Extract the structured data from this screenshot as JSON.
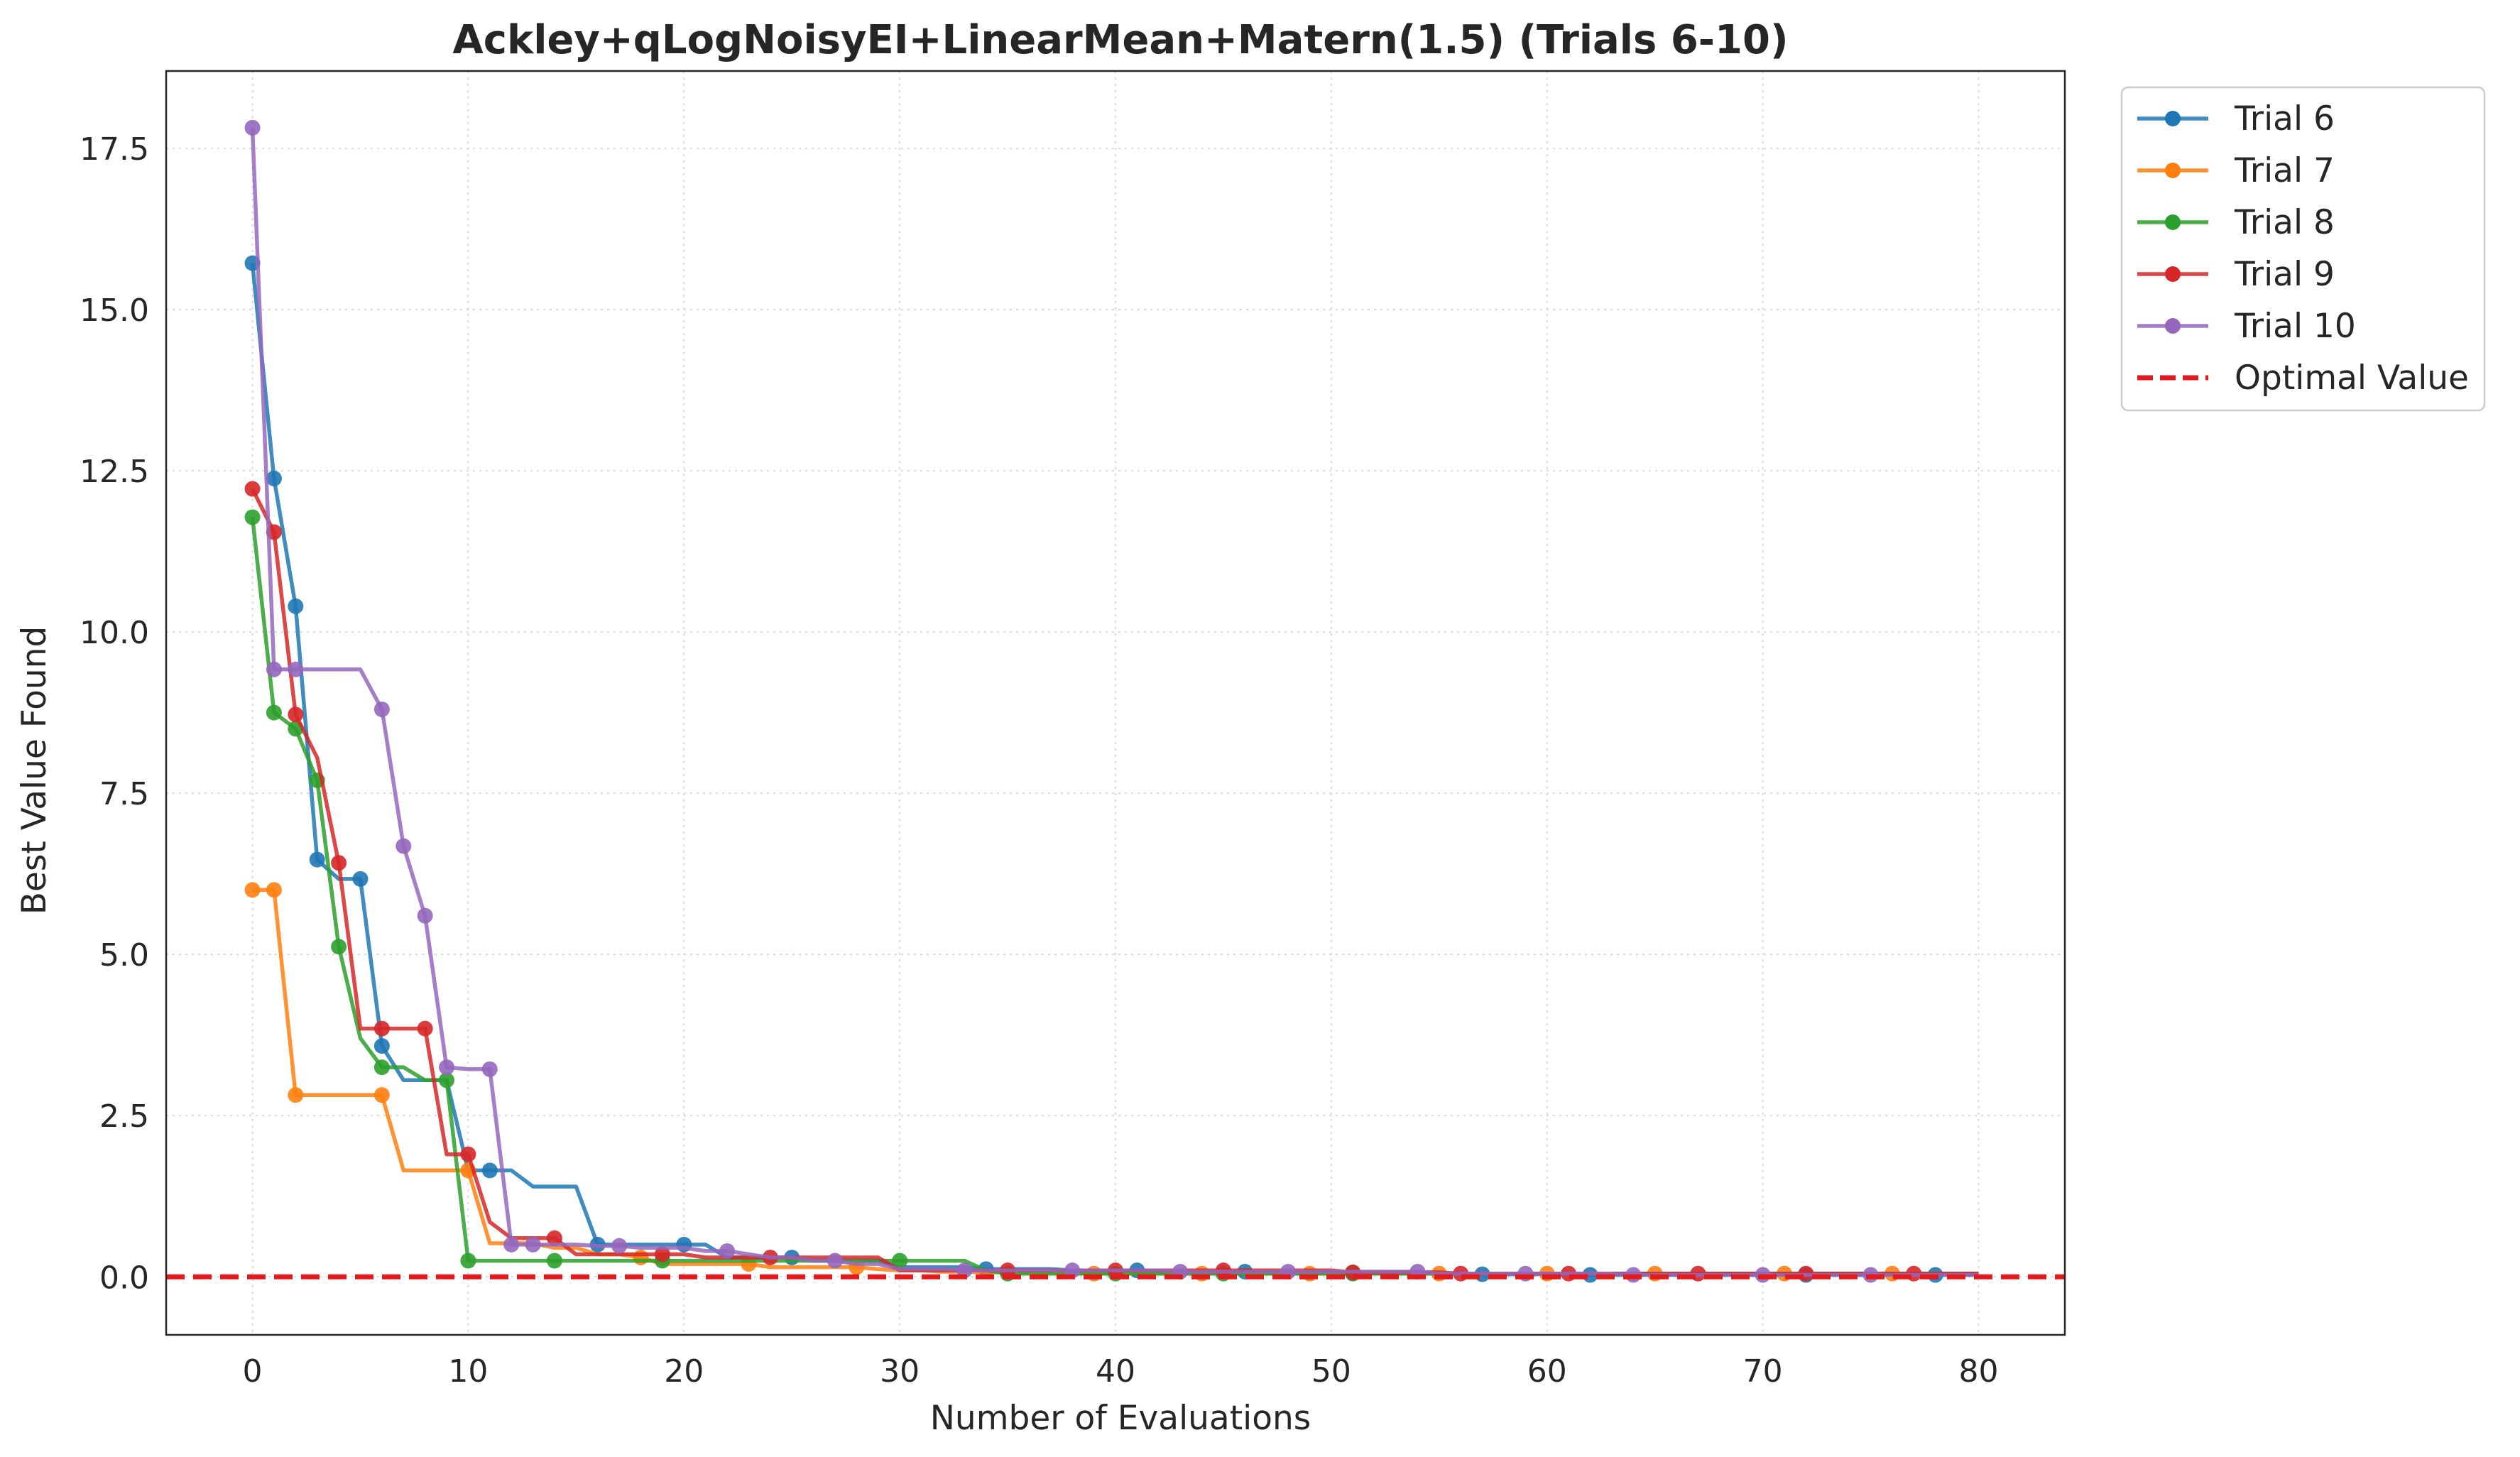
{
  "chart_data": {
    "type": "line",
    "title": "Ackley+qLogNoisyEI+LinearMean+Matern(1.5) (Trials 6-10)",
    "xlabel": "Number of Evaluations",
    "ylabel": "Best Value Found",
    "xlim": [
      -4,
      84
    ],
    "ylim": [
      -0.9,
      18.7
    ],
    "xticks": [
      0,
      10,
      20,
      30,
      40,
      50,
      60,
      70,
      80
    ],
    "xtick_labels": [
      "0",
      "10",
      "20",
      "30",
      "40",
      "50",
      "60",
      "70",
      "80"
    ],
    "yticks": [
      0.0,
      2.5,
      5.0,
      7.5,
      10.0,
      12.5,
      15.0,
      17.5
    ],
    "ytick_labels": [
      "0.0",
      "2.5",
      "5.0",
      "7.5",
      "10.0",
      "12.5",
      "15.0",
      "17.5"
    ],
    "grid": true,
    "legend_position": "outside-top-right",
    "series": [
      {
        "name": "Trial 6",
        "color": "#1f77b4",
        "x": [
          0,
          1,
          2,
          3,
          4,
          5,
          6,
          7,
          8,
          9,
          10,
          11,
          12,
          13,
          14,
          15,
          16,
          17,
          18,
          19,
          20,
          21,
          22,
          23,
          24,
          25,
          26,
          27,
          28,
          29,
          30,
          31,
          32,
          33,
          34,
          35,
          36,
          37,
          38,
          39,
          40,
          41,
          42,
          43,
          44,
          45,
          46,
          47,
          48,
          49,
          50,
          51,
          52,
          53,
          54,
          55,
          56,
          57,
          58,
          59,
          60,
          61,
          62,
          63,
          64,
          65,
          66,
          67,
          68,
          69,
          70,
          71,
          72,
          73,
          74,
          75,
          76,
          77,
          78,
          79,
          80
        ],
        "y": [
          15.72,
          12.38,
          10.4,
          6.47,
          6.17,
          6.17,
          3.58,
          3.05,
          3.05,
          3.05,
          1.65,
          1.65,
          1.65,
          1.4,
          1.4,
          1.4,
          0.5,
          0.5,
          0.5,
          0.5,
          0.5,
          0.5,
          0.3,
          0.3,
          0.3,
          0.3,
          0.25,
          0.25,
          0.25,
          0.25,
          0.15,
          0.15,
          0.15,
          0.15,
          0.12,
          0.12,
          0.12,
          0.12,
          0.1,
          0.1,
          0.1,
          0.1,
          0.08,
          0.08,
          0.08,
          0.08,
          0.08,
          0.07,
          0.07,
          0.07,
          0.07,
          0.06,
          0.06,
          0.06,
          0.06,
          0.05,
          0.05,
          0.04,
          0.04,
          0.04,
          0.04,
          0.04,
          0.03,
          0.03,
          0.03,
          0.03,
          0.03,
          0.03,
          0.03,
          0.03,
          0.03,
          0.03,
          0.03,
          0.03,
          0.03,
          0.03,
          0.03,
          0.03,
          0.03,
          0.03,
          0.03
        ],
        "markers_at": [
          0,
          1,
          2,
          3,
          5,
          6,
          11,
          16,
          20,
          25,
          34,
          41,
          46,
          51,
          57,
          62,
          72,
          78
        ]
      },
      {
        "name": "Trial 7",
        "color": "#ff7f0e",
        "x": [
          0,
          1,
          2,
          3,
          4,
          5,
          6,
          7,
          8,
          9,
          10,
          11,
          12,
          13,
          14,
          15,
          16,
          17,
          18,
          19,
          20,
          21,
          22,
          23,
          24,
          25,
          26,
          27,
          28,
          29,
          30,
          31,
          32,
          33,
          34,
          35,
          36,
          37,
          38,
          39,
          40,
          41,
          42,
          43,
          44,
          45,
          46,
          47,
          48,
          49,
          50,
          51,
          52,
          53,
          54,
          55,
          56,
          57,
          58,
          59,
          60,
          61,
          62,
          63,
          64,
          65,
          66,
          67,
          68,
          69,
          70,
          71,
          72,
          73,
          74,
          75,
          76,
          77,
          78,
          79,
          80
        ],
        "y": [
          6.0,
          6.0,
          2.82,
          2.82,
          2.82,
          2.82,
          2.82,
          1.65,
          1.65,
          1.65,
          1.65,
          0.52,
          0.52,
          0.52,
          0.45,
          0.45,
          0.35,
          0.35,
          0.3,
          0.2,
          0.2,
          0.2,
          0.2,
          0.2,
          0.15,
          0.15,
          0.15,
          0.15,
          0.15,
          0.12,
          0.1,
          0.1,
          0.08,
          0.08,
          0.07,
          0.07,
          0.07,
          0.06,
          0.06,
          0.05,
          0.05,
          0.05,
          0.05,
          0.05,
          0.05,
          0.05,
          0.05,
          0.05,
          0.05,
          0.05,
          0.05,
          0.05,
          0.05,
          0.05,
          0.05,
          0.05,
          0.05,
          0.05,
          0.05,
          0.05,
          0.05,
          0.05,
          0.05,
          0.05,
          0.05,
          0.05,
          0.05,
          0.05,
          0.05,
          0.05,
          0.05,
          0.05,
          0.05,
          0.05,
          0.05,
          0.05,
          0.05,
          0.05,
          0.05,
          0.05,
          0.05
        ],
        "markers_at": [
          0,
          1,
          2,
          6,
          10,
          18,
          23,
          28,
          39,
          44,
          49,
          55,
          60,
          65,
          71,
          76
        ]
      },
      {
        "name": "Trial 8",
        "color": "#2ca02c",
        "x": [
          0,
          1,
          2,
          3,
          4,
          5,
          6,
          7,
          8,
          9,
          10,
          11,
          12,
          13,
          14,
          15,
          16,
          17,
          18,
          19,
          20,
          21,
          22,
          23,
          24,
          25,
          26,
          27,
          28,
          29,
          30,
          31,
          32,
          33,
          34,
          35,
          36,
          37,
          38,
          39,
          40,
          41,
          42,
          43,
          44,
          45,
          46,
          47,
          48,
          49,
          50,
          51,
          52,
          53,
          54,
          55,
          56,
          57,
          58,
          59,
          60,
          61,
          62,
          63,
          64,
          65,
          66,
          67,
          68,
          69,
          70,
          71,
          72,
          73,
          74,
          75,
          76,
          77,
          78,
          79,
          80
        ],
        "y": [
          11.78,
          8.75,
          8.5,
          7.7,
          5.12,
          3.7,
          3.25,
          3.25,
          3.05,
          3.05,
          0.25,
          0.25,
          0.25,
          0.25,
          0.25,
          0.25,
          0.25,
          0.25,
          0.25,
          0.25,
          0.25,
          0.25,
          0.25,
          0.25,
          0.25,
          0.25,
          0.25,
          0.25,
          0.25,
          0.25,
          0.25,
          0.25,
          0.25,
          0.25,
          0.1,
          0.05,
          0.05,
          0.05,
          0.05,
          0.05,
          0.05,
          0.05,
          0.05,
          0.05,
          0.05,
          0.05,
          0.05,
          0.05,
          0.05,
          0.05,
          0.05,
          0.05,
          0.05,
          0.05,
          0.05,
          0.05,
          0.05,
          0.05,
          0.05,
          0.05,
          0.05,
          0.05,
          0.05,
          0.05,
          0.05,
          0.05,
          0.05,
          0.05,
          0.05,
          0.05,
          0.05,
          0.05,
          0.05,
          0.05,
          0.05,
          0.05,
          0.05,
          0.05,
          0.05,
          0.05,
          0.05
        ],
        "markers_at": [
          0,
          1,
          2,
          3,
          4,
          6,
          9,
          10,
          14,
          19,
          30,
          35,
          40,
          45,
          51
        ]
      },
      {
        "name": "Trial 9",
        "color": "#d62728",
        "x": [
          0,
          1,
          2,
          3,
          4,
          5,
          6,
          7,
          8,
          9,
          10,
          11,
          12,
          13,
          14,
          15,
          16,
          17,
          18,
          19,
          20,
          21,
          22,
          23,
          24,
          25,
          26,
          27,
          28,
          29,
          30,
          31,
          32,
          33,
          34,
          35,
          36,
          37,
          38,
          39,
          40,
          41,
          42,
          43,
          44,
          45,
          46,
          47,
          48,
          49,
          50,
          51,
          52,
          53,
          54,
          55,
          56,
          57,
          58,
          59,
          60,
          61,
          62,
          63,
          64,
          65,
          66,
          67,
          68,
          69,
          70,
          71,
          72,
          73,
          74,
          75,
          76,
          77,
          78,
          79,
          80
        ],
        "y": [
          12.22,
          11.55,
          8.72,
          8.05,
          6.42,
          3.85,
          3.85,
          3.85,
          3.85,
          1.9,
          1.9,
          0.85,
          0.6,
          0.6,
          0.6,
          0.35,
          0.35,
          0.35,
          0.35,
          0.35,
          0.35,
          0.3,
          0.3,
          0.3,
          0.3,
          0.3,
          0.3,
          0.3,
          0.3,
          0.3,
          0.1,
          0.1,
          0.1,
          0.1,
          0.1,
          0.1,
          0.1,
          0.1,
          0.1,
          0.1,
          0.1,
          0.1,
          0.1,
          0.1,
          0.1,
          0.1,
          0.1,
          0.1,
          0.1,
          0.1,
          0.1,
          0.07,
          0.07,
          0.07,
          0.07,
          0.07,
          0.05,
          0.05,
          0.05,
          0.05,
          0.05,
          0.05,
          0.05,
          0.05,
          0.05,
          0.05,
          0.05,
          0.05,
          0.05,
          0.05,
          0.05,
          0.05,
          0.05,
          0.05,
          0.05,
          0.05,
          0.05,
          0.05,
          0.05,
          0.05,
          0.05
        ],
        "markers_at": [
          0,
          1,
          2,
          4,
          6,
          8,
          10,
          14,
          19,
          24,
          35,
          40,
          45,
          51,
          56,
          61,
          67,
          72,
          77
        ]
      },
      {
        "name": "Trial 10",
        "color": "#9467bd",
        "x": [
          0,
          1,
          2,
          3,
          4,
          5,
          6,
          7,
          8,
          9,
          10,
          11,
          12,
          13,
          14,
          15,
          16,
          17,
          18,
          19,
          20,
          21,
          22,
          23,
          24,
          25,
          26,
          27,
          28,
          29,
          30,
          31,
          32,
          33,
          34,
          35,
          36,
          37,
          38,
          39,
          40,
          41,
          42,
          43,
          44,
          45,
          46,
          47,
          48,
          49,
          50,
          51,
          52,
          53,
          54,
          55,
          56,
          57,
          58,
          59,
          60,
          61,
          62,
          63,
          64,
          65,
          66,
          67,
          68,
          69,
          70,
          71,
          72,
          73,
          74,
          75,
          76,
          77,
          78,
          79,
          80
        ],
        "y": [
          17.82,
          9.42,
          9.42,
          9.42,
          9.42,
          9.42,
          8.8,
          6.68,
          5.6,
          3.25,
          3.22,
          3.22,
          0.5,
          0.5,
          0.5,
          0.5,
          0.48,
          0.48,
          0.45,
          0.45,
          0.45,
          0.4,
          0.4,
          0.35,
          0.3,
          0.3,
          0.25,
          0.25,
          0.2,
          0.2,
          0.12,
          0.12,
          0.12,
          0.1,
          0.1,
          0.1,
          0.1,
          0.1,
          0.1,
          0.1,
          0.1,
          0.1,
          0.1,
          0.08,
          0.08,
          0.08,
          0.08,
          0.08,
          0.08,
          0.08,
          0.08,
          0.08,
          0.08,
          0.08,
          0.08,
          0.05,
          0.05,
          0.05,
          0.05,
          0.05,
          0.05,
          0.05,
          0.05,
          0.05,
          0.03,
          0.03,
          0.03,
          0.03,
          0.03,
          0.03,
          0.03,
          0.03,
          0.03,
          0.03,
          0.03,
          0.03,
          0.03,
          0.03,
          0.03,
          0.03,
          0.03
        ],
        "markers_at": [
          0,
          1,
          2,
          6,
          7,
          8,
          9,
          11,
          12,
          13,
          17,
          22,
          27,
          33,
          38,
          43,
          48,
          54,
          59,
          64,
          70,
          75
        ]
      }
    ],
    "reference_line": {
      "name": "Optimal Value",
      "y": 0.0,
      "color": "#e41a1c",
      "style": "dashed"
    }
  }
}
